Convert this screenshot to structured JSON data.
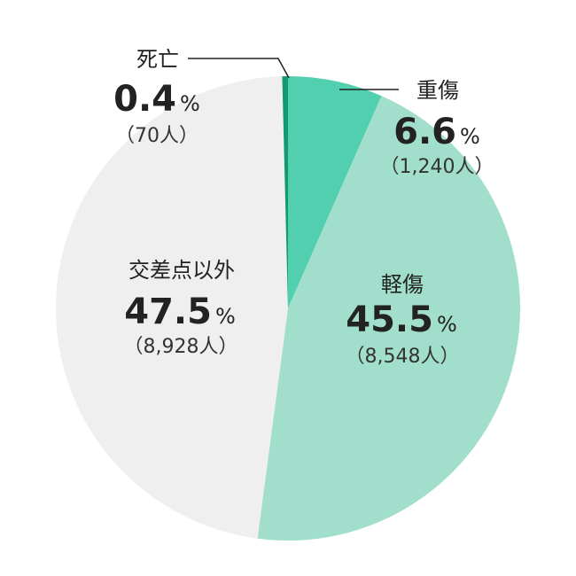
{
  "chart_data": {
    "type": "pie",
    "title": "",
    "start_angle_deg": 0,
    "direction": "clockwise",
    "slices": [
      {
        "label": "重傷",
        "percent": 6.6,
        "percent_text": "6.6",
        "percent_sign": "%",
        "count_text": "（1,240人）",
        "color": "#52cfae"
      },
      {
        "label": "軽傷",
        "percent": 45.5,
        "percent_text": "45.5",
        "percent_sign": "%",
        "count_text": "（8,548人）",
        "color": "#a1dfcc"
      },
      {
        "label": "交差点以外",
        "percent": 47.5,
        "percent_text": "47.5",
        "percent_sign": "%",
        "count_text": "（8,928人）",
        "color": "#efefef"
      },
      {
        "label": "死亡",
        "percent": 0.4,
        "percent_text": "0.4",
        "percent_sign": "%",
        "count_text": "（70人）",
        "color": "#139a72"
      }
    ],
    "leader_line_color": "#222222"
  }
}
